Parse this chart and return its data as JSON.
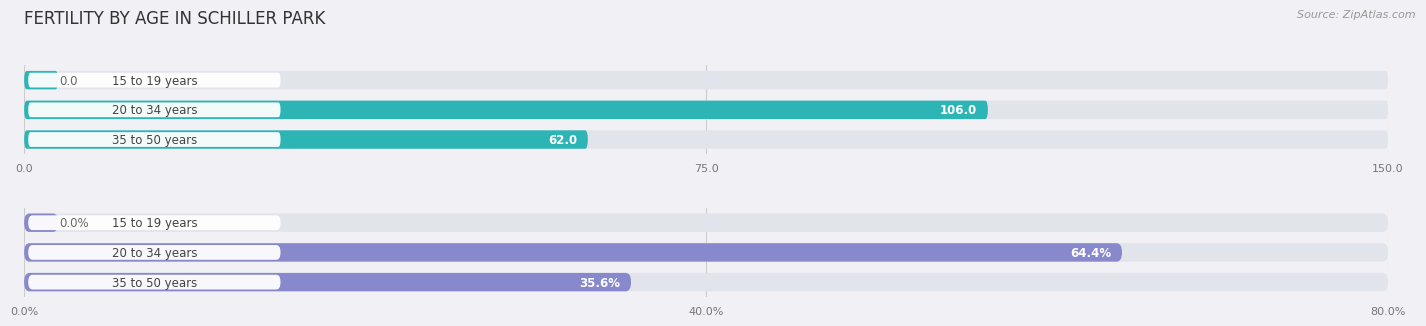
{
  "title": "FERTILITY BY AGE IN SCHILLER PARK",
  "source": "Source: ZipAtlas.com",
  "top_bars": {
    "categories": [
      "15 to 19 years",
      "20 to 34 years",
      "35 to 50 years"
    ],
    "values": [
      0.0,
      106.0,
      62.0
    ],
    "xlim": [
      0,
      150
    ],
    "xticks": [
      0.0,
      75.0,
      150.0
    ],
    "xtick_labels": [
      "0.0",
      "75.0",
      "150.0"
    ],
    "bar_color": "#2db5b5",
    "bar_bg_color": "#e2e4ec"
  },
  "bottom_bars": {
    "categories": [
      "15 to 19 years",
      "20 to 34 years",
      "35 to 50 years"
    ],
    "values": [
      0.0,
      64.4,
      35.6
    ],
    "xlim": [
      0,
      80
    ],
    "xticks": [
      0.0,
      40.0,
      80.0
    ],
    "xtick_labels": [
      "0.0%",
      "40.0%",
      "80.0%"
    ],
    "bar_color": "#8888cc",
    "bar_bg_color": "#e2e4ec"
  },
  "background_color": "#f0f0f5",
  "label_box_color": "#ffffff",
  "label_text_color": "#444444",
  "value_color_inside": "#ffffff",
  "value_color_outside": "#666666",
  "fig_width": 14.06,
  "fig_height": 3.31,
  "title_fontsize": 12,
  "label_fontsize": 8.5,
  "value_fontsize": 8.5,
  "tick_fontsize": 8,
  "source_fontsize": 8
}
